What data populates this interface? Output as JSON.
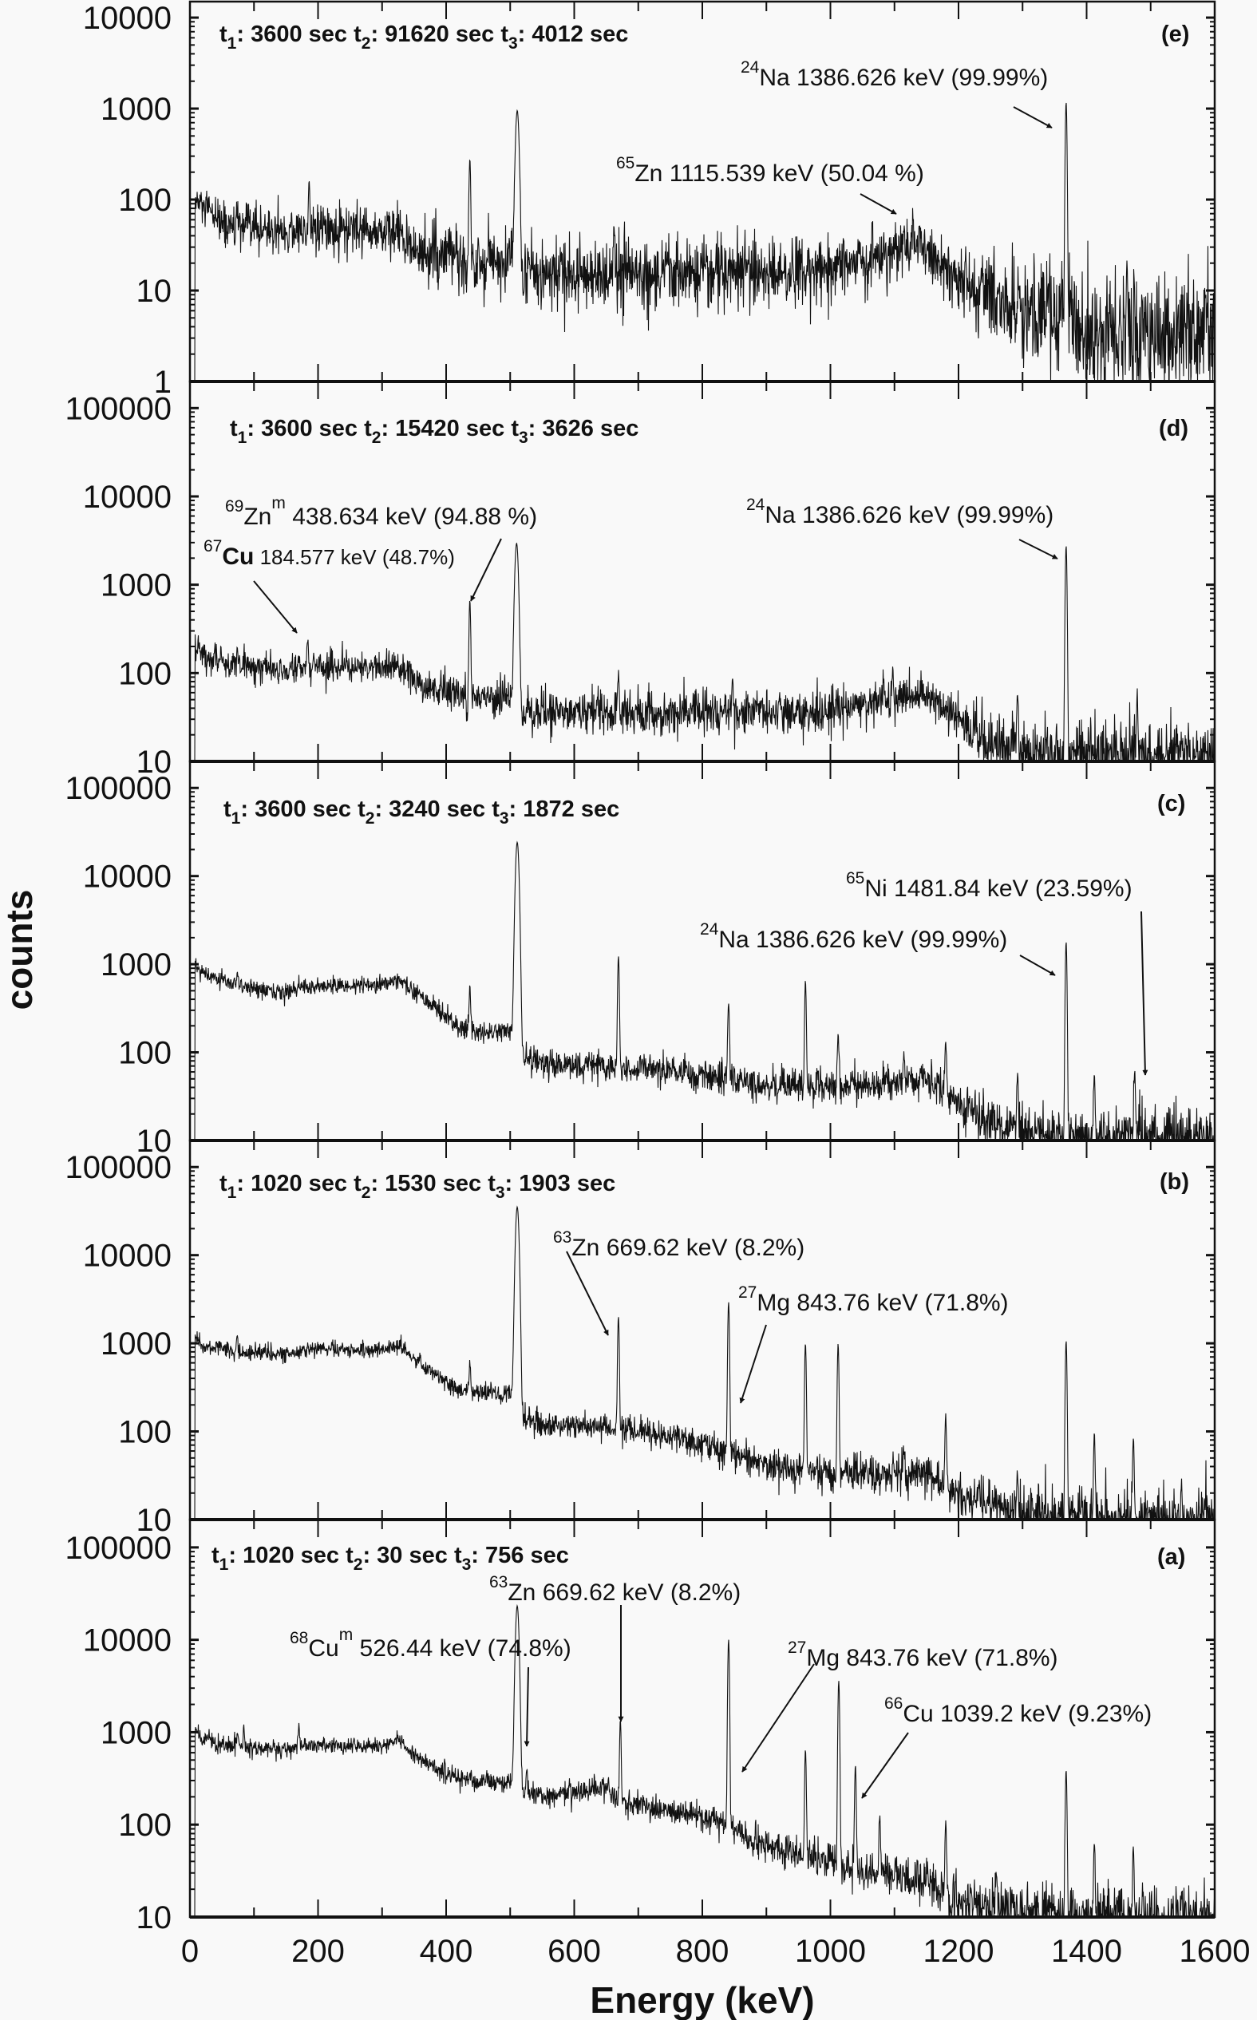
{
  "axes": {
    "xlabel": "Energy (keV)",
    "ylabel": "counts",
    "xlim": [
      0,
      1600
    ],
    "xticks": [
      "0",
      "200",
      "400",
      "600",
      "800",
      "1000",
      "1200",
      "1400",
      "1600"
    ],
    "yscale": "log"
  },
  "chart_data": [
    {
      "type": "line",
      "panel": "(e)",
      "header": [
        {
          "base": "t",
          "sub": "1",
          "value": ": 3600 sec "
        },
        {
          "base": "t",
          "sub": "2",
          "value": ": 91620 sec "
        },
        {
          "base": "t",
          "sub": "3",
          "value": ": 4012 sec"
        }
      ],
      "ylim": [
        1,
        15000
      ],
      "yticks": [
        "1",
        "10",
        "100",
        "1000",
        "10000"
      ],
      "noise": 1.4,
      "background": [
        [
          8,
          95
        ],
        [
          20,
          80
        ],
        [
          60,
          50
        ],
        [
          150,
          45
        ],
        [
          300,
          45
        ],
        [
          330,
          40
        ],
        [
          360,
          26
        ],
        [
          440,
          22
        ],
        [
          505,
          20
        ],
        [
          520,
          15
        ],
        [
          800,
          15
        ],
        [
          1000,
          18
        ],
        [
          1100,
          27
        ],
        [
          1140,
          32
        ],
        [
          1170,
          20
        ],
        [
          1210,
          11
        ],
        [
          1260,
          7
        ],
        [
          1300,
          6
        ],
        [
          1360,
          5
        ],
        [
          1400,
          3.5
        ],
        [
          1600,
          3.5
        ]
      ],
      "peaks": [
        [
          186,
          120
        ],
        [
          437,
          250
        ],
        [
          511,
          930
        ],
        [
          662,
          35
        ],
        [
          1115,
          25
        ],
        [
          1368,
          1150
        ],
        [
          1463,
          14
        ]
      ],
      "annotations": [
        {
          "mass": "24",
          "symbol": "Na",
          "meta": "",
          "rest": " 1386.626 keV (99.99%)"
        },
        {
          "mass": "65",
          "symbol": "Zn",
          "meta": "",
          "rest": " 1115.539 keV (50.04 %)"
        }
      ]
    },
    {
      "type": "line",
      "panel": "(d)",
      "header": [
        {
          "base": "t",
          "sub": "1",
          "value": ": 3600 sec "
        },
        {
          "base": "t",
          "sub": "2",
          "value": ": 15420 sec "
        },
        {
          "base": "t",
          "sub": "3",
          "value": ": 3626 sec"
        }
      ],
      "ylim": [
        10,
        200000
      ],
      "yticks": [
        "10",
        "100",
        "1000",
        "10000",
        "100000"
      ],
      "noise": 1.2,
      "background": [
        [
          8,
          210
        ],
        [
          20,
          170
        ],
        [
          60,
          125
        ],
        [
          150,
          115
        ],
        [
          320,
          118
        ],
        [
          335,
          110
        ],
        [
          370,
          68
        ],
        [
          430,
          52
        ],
        [
          505,
          50
        ],
        [
          520,
          36
        ],
        [
          800,
          35
        ],
        [
          1000,
          37
        ],
        [
          1100,
          52
        ],
        [
          1140,
          60
        ],
        [
          1170,
          45
        ],
        [
          1220,
          22
        ],
        [
          1280,
          13
        ],
        [
          1350,
          12
        ],
        [
          1600,
          12
        ]
      ],
      "peaks": [
        [
          74,
          70
        ],
        [
          184,
          130
        ],
        [
          437,
          620
        ],
        [
          510,
          2900
        ],
        [
          669,
          55
        ],
        [
          847,
          50
        ],
        [
          1097,
          60
        ],
        [
          1292,
          48
        ],
        [
          1368,
          2700
        ],
        [
          1479,
          40
        ]
      ],
      "annotations": [
        {
          "mass": "69",
          "symbol": "Zn",
          "meta": "m",
          "rest": " 438.634 keV (94.88 %)"
        },
        {
          "mass": "67",
          "symbol": "Cu",
          "meta": "",
          "rest": " 184.577 keV (48.7%)"
        },
        {
          "mass": "24",
          "symbol": "Na",
          "meta": "",
          "rest": " 1386.626 keV (99.99%)"
        }
      ]
    },
    {
      "type": "line",
      "panel": "(c)",
      "header": [
        {
          "base": "t",
          "sub": "1",
          "value": ": 3600 sec "
        },
        {
          "base": "t",
          "sub": "2",
          "value": ": 3240 sec "
        },
        {
          "base": "t",
          "sub": "3",
          "value": ": 1872 sec"
        }
      ],
      "ylim": [
        10,
        200000
      ],
      "yticks": [
        "10",
        "100",
        "1000",
        "10000",
        "100000"
      ],
      "noise": 1.0,
      "background": [
        [
          8,
          930
        ],
        [
          20,
          800
        ],
        [
          70,
          580
        ],
        [
          150,
          470
        ],
        [
          175,
          560
        ],
        [
          300,
          580
        ],
        [
          330,
          660
        ],
        [
          345,
          520
        ],
        [
          380,
          330
        ],
        [
          420,
          200
        ],
        [
          450,
          170
        ],
        [
          505,
          175
        ],
        [
          520,
          90
        ],
        [
          560,
          72
        ],
        [
          700,
          68
        ],
        [
          800,
          55
        ],
        [
          900,
          44
        ],
        [
          1000,
          40
        ],
        [
          1100,
          45
        ],
        [
          1140,
          52
        ],
        [
          1170,
          40
        ],
        [
          1200,
          26
        ],
        [
          1250,
          16
        ],
        [
          1300,
          12
        ],
        [
          1400,
          11
        ],
        [
          1600,
          11
        ]
      ],
      "peaks": [
        [
          74,
          300
        ],
        [
          437,
          380
        ],
        [
          511,
          24000
        ],
        [
          669,
          1150
        ],
        [
          841,
          320
        ],
        [
          961,
          590
        ],
        [
          1012,
          120
        ],
        [
          1115,
          40
        ],
        [
          1180,
          100
        ],
        [
          1292,
          38
        ],
        [
          1368,
          1750
        ],
        [
          1412,
          48
        ],
        [
          1475,
          48
        ]
      ],
      "annotations": [
        {
          "mass": "65",
          "symbol": "Ni",
          "meta": "",
          "rest": " 1481.84 keV (23.59%)"
        },
        {
          "mass": "24",
          "symbol": "Na",
          "meta": "",
          "rest": " 1386.626 keV (99.99%)"
        }
      ]
    },
    {
      "type": "line",
      "panel": "(b)",
      "header": [
        {
          "base": "t",
          "sub": "1",
          "value": ": 1020 sec "
        },
        {
          "base": "t",
          "sub": "2",
          "value": ": 1530 sec "
        },
        {
          "base": "t",
          "sub": "3",
          "value": ": 1903 sec"
        }
      ],
      "ylim": [
        10,
        200000
      ],
      "yticks": [
        "10",
        "100",
        "1000",
        "10000",
        "100000"
      ],
      "noise": 1.0,
      "background": [
        [
          8,
          1150
        ],
        [
          20,
          950
        ],
        [
          70,
          800
        ],
        [
          150,
          730
        ],
        [
          175,
          850
        ],
        [
          300,
          830
        ],
        [
          330,
          960
        ],
        [
          345,
          700
        ],
        [
          380,
          450
        ],
        [
          420,
          300
        ],
        [
          450,
          270
        ],
        [
          505,
          280
        ],
        [
          520,
          140
        ],
        [
          560,
          118
        ],
        [
          650,
          115
        ],
        [
          700,
          100
        ],
        [
          800,
          72
        ],
        [
          900,
          42
        ],
        [
          1000,
          34
        ],
        [
          1150,
          33
        ],
        [
          1200,
          20
        ],
        [
          1300,
          12
        ],
        [
          1400,
          10
        ],
        [
          1600,
          10
        ]
      ],
      "peaks": [
        [
          74,
          400
        ],
        [
          437,
          330
        ],
        [
          511,
          35000
        ],
        [
          669,
          1900
        ],
        [
          841,
          2850
        ],
        [
          961,
          940
        ],
        [
          1012,
          940
        ],
        [
          1115,
          30
        ],
        [
          1180,
          130
        ],
        [
          1292,
          22
        ],
        [
          1368,
          1040
        ],
        [
          1412,
          82
        ],
        [
          1473,
          76
        ],
        [
          1548,
          16
        ]
      ],
      "annotations": [
        {
          "mass": "63",
          "symbol": "Zn",
          "meta": "",
          "rest": " 669.62 keV (8.2%)"
        },
        {
          "mass": "27",
          "symbol": "Mg",
          "meta": "",
          "rest": " 843.76 keV (71.8%)"
        }
      ]
    },
    {
      "type": "line",
      "panel": "(a)",
      "header": [
        {
          "base": "t",
          "sub": "1",
          "value": ": 1020 sec "
        },
        {
          "base": "t",
          "sub": "2",
          "value": ": 30 sec "
        },
        {
          "base": "t",
          "sub": "3",
          "value": ": 756 sec"
        }
      ],
      "ylim": [
        10,
        200000
      ],
      "yticks": [
        "10",
        "100",
        "1000",
        "10000",
        "100000"
      ],
      "noise": 1.0,
      "background": [
        [
          8,
          1080
        ],
        [
          20,
          850
        ],
        [
          70,
          700
        ],
        [
          150,
          650
        ],
        [
          175,
          720
        ],
        [
          300,
          710
        ],
        [
          330,
          800
        ],
        [
          345,
          580
        ],
        [
          380,
          420
        ],
        [
          420,
          320
        ],
        [
          450,
          285
        ],
        [
          505,
          290
        ],
        [
          520,
          215
        ],
        [
          560,
          210
        ],
        [
          620,
          240
        ],
        [
          645,
          265
        ],
        [
          665,
          185
        ],
        [
          700,
          165
        ],
        [
          800,
          120
        ],
        [
          840,
          100
        ],
        [
          880,
          68
        ],
        [
          960,
          44
        ],
        [
          1050,
          33
        ],
        [
          1150,
          24
        ],
        [
          1200,
          15
        ],
        [
          1300,
          12
        ],
        [
          1400,
          10
        ],
        [
          1600,
          10
        ]
      ],
      "peaks": [
        [
          74,
          320
        ],
        [
          84,
          380
        ],
        [
          170,
          550
        ],
        [
          438,
          60
        ],
        [
          511,
          23000
        ],
        [
          526,
          200
        ],
        [
          672,
          1150
        ],
        [
          841,
          9900
        ],
        [
          961,
          600
        ],
        [
          1013,
          3560
        ],
        [
          1039,
          400
        ],
        [
          1077,
          95
        ],
        [
          1180,
          90
        ],
        [
          1259,
          20
        ],
        [
          1368,
          370
        ],
        [
          1412,
          56
        ],
        [
          1473,
          48
        ],
        [
          1548,
          10
        ]
      ],
      "annotations": [
        {
          "mass": "63",
          "symbol": "Zn",
          "meta": "",
          "rest": " 669.62 keV (8.2%)"
        },
        {
          "mass": "68",
          "symbol": "Cu",
          "meta": "m",
          "rest": " 526.44 keV (74.8%)"
        },
        {
          "mass": "27",
          "symbol": "Mg",
          "meta": "",
          "rest": " 843.76 keV (71.8%)"
        },
        {
          "mass": "66",
          "symbol": "Cu",
          "meta": "",
          "rest": " 1039.2 keV (9.23%)"
        }
      ]
    }
  ]
}
